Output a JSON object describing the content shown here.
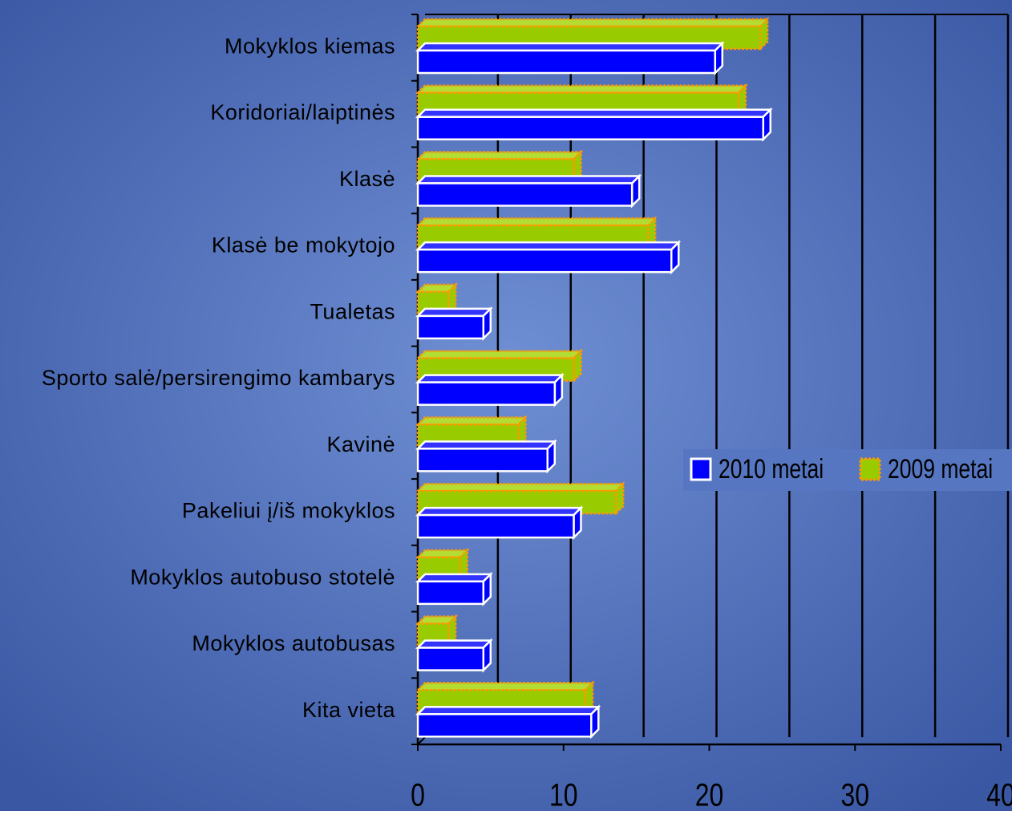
{
  "chart_data": {
    "type": "bar",
    "orientation": "horizontal",
    "categories": [
      "Mokyklos kiemas",
      "Koridoriai/laiptinės",
      "Klasė",
      "Klasė be mokytojo",
      "Tualetas",
      "Sporto salė/persirengimo kambarys",
      "Kavinė",
      "Pakeliui į/iš mokyklos",
      "Mokyklos autobuso stotelė",
      "Mokyklos autobusas",
      "Kita vieta"
    ],
    "series": [
      {
        "name": "2010 metai",
        "color": "#0000ff",
        "values": [
          20.4,
          23.7,
          14.7,
          17.4,
          4.5,
          9.4,
          8.9,
          10.7,
          4.5,
          4.5,
          11.9
        ]
      },
      {
        "name": "2009 metai",
        "color": "#99cc00",
        "values": [
          23.5,
          22,
          10.7,
          15.8,
          2.1,
          10.7,
          6.9,
          13.6,
          2.9,
          2.1,
          11.5
        ]
      }
    ],
    "xlim": [
      0,
      40
    ],
    "xticks": [
      0,
      10,
      20,
      30,
      40
    ],
    "xgrid": [
      5,
      10,
      15,
      20,
      25,
      30,
      35,
      40
    ],
    "legend": "right"
  }
}
